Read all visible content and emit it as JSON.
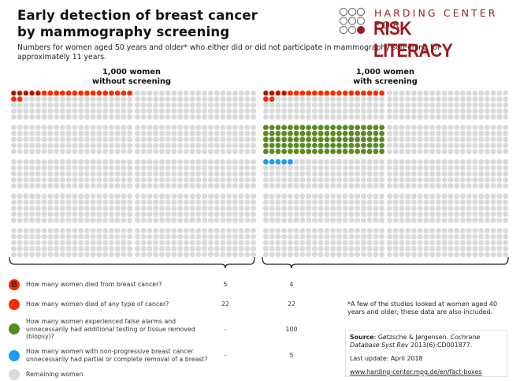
{
  "header": {
    "title_line1": "Early detection of breast cancer",
    "title_line2": "by mammography screening",
    "subtitle": "Numbers for women aged 50 years and older* who either did or did not participate in mammography screening for approximately 11 years."
  },
  "logo": {
    "top_text": "HARDING CENTER FOR",
    "bottom_text": "RISK LITERACY",
    "color": "#9b1b1f"
  },
  "panels": [
    {
      "head_line1": "1,000 women",
      "head_line2": "without screening"
    },
    {
      "head_line1": "1,000 women",
      "head_line2": "with screening"
    }
  ],
  "colors": {
    "breast_cancer_death": "#ff2a00",
    "cancer_death": "#ff2a00",
    "false_alarm": "#5a8a1e",
    "overtreatment": "#1a9cf0",
    "remaining": "#d9d9d9",
    "b_mark": "#4a0a00"
  },
  "chart_data": {
    "type": "icon-array",
    "title": "Early detection of breast cancer by mammography screening",
    "total_per_group": 1000,
    "groups": [
      "1,000 women without screening",
      "1,000 women with screening"
    ],
    "series": [
      {
        "name": "How many women died from breast cancer?",
        "key": "breast_cancer_death",
        "marker": "B",
        "values": [
          5,
          4
        ],
        "display": [
          "5",
          "4"
        ]
      },
      {
        "name": "How many women died of any type of cancer?",
        "key": "cancer_death",
        "values": [
          22,
          22
        ],
        "display": [
          "22",
          "22"
        ]
      },
      {
        "name": "How many women experienced false alarms and unnecessarily had additional testing or tissue removed (biopsy)?",
        "key": "false_alarm",
        "values": [
          0,
          100
        ],
        "display": [
          "-",
          "100"
        ]
      },
      {
        "name": "How many women with non-progressive breast cancer unnecessarily had partial or complete removal of a breast?",
        "key": "overtreatment",
        "values": [
          0,
          5
        ],
        "display": [
          "-",
          "5"
        ]
      },
      {
        "name": "Remaining women",
        "key": "remaining",
        "values": [
          978,
          873
        ],
        "display": [
          "",
          ""
        ]
      }
    ]
  },
  "legend": [
    {
      "question": "How many women died from breast cancer?",
      "v1": "5",
      "v2": "4",
      "icon": "b-marker-icon",
      "color": "#ff2a00",
      "mark": "B"
    },
    {
      "question": "How many women died of any type of cancer?",
      "v1": "22",
      "v2": "22",
      "icon": "red-dot-icon",
      "color": "#ff2a00",
      "mark": ""
    },
    {
      "question": "How many women experienced false alarms and unnecessarily had additional testing or tissue removed (biopsy)?",
      "v1": "-",
      "v2": "100",
      "icon": "green-dot-icon",
      "color": "#5a8a1e",
      "mark": ""
    },
    {
      "question": "How many women with non-progressive breast cancer unnecessarily had partial or complete removal of a breast?",
      "v1": "-",
      "v2": "5",
      "icon": "blue-dot-icon",
      "color": "#1a9cf0",
      "mark": ""
    },
    {
      "question": "Remaining women",
      "v1": "",
      "v2": "",
      "icon": "grey-dot-icon",
      "color": "#d9d9d9",
      "mark": ""
    }
  ],
  "footnote": "*A few of the studies looked at women aged 40 years and older; these data are also included.",
  "source": {
    "label": "Source",
    "text_pre": ": Gøtzsche & Jørgensen. ",
    "journal": "Cochrane Database Syst Rev",
    "text_post": " 2013(6):CD001877.",
    "update": "Last update: April 2018",
    "url_text": "www.harding-center.mpg.de/en/fact-boxes"
  }
}
